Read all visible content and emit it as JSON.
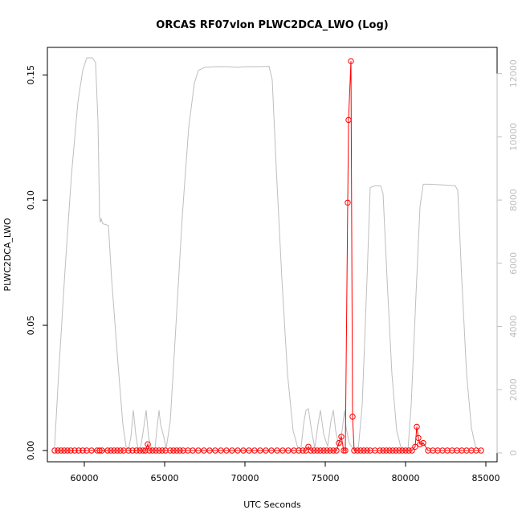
{
  "chart_data": {
    "type": "line",
    "title": "ORCAS RF07vlon PLWC2DCA_LWO (Log)",
    "xlabel": "UTC Seconds",
    "ylabel": "PLWC2DCA_LWO",
    "xlim": [
      57700,
      85700
    ],
    "ylim": [
      -0.0045,
      0.161
    ],
    "y2lim": [
      -280,
      12830
    ],
    "x_ticks": [
      60000,
      65000,
      70000,
      75000,
      80000,
      85000
    ],
    "y_ticks": [
      0.0,
      0.05,
      0.1,
      0.15
    ],
    "y2_ticks": [
      0,
      2000,
      4000,
      6000,
      8000,
      10000,
      12000
    ],
    "grid": false,
    "legend": "none",
    "colors": {
      "primary": "#ff0000",
      "secondary": "#bebebe",
      "axis": "#000000"
    },
    "series": [
      {
        "axis": "left",
        "color": "#ff0000",
        "marker": "open-circle",
        "points": [
          [
            58150,
            0
          ],
          [
            58350,
            0
          ],
          [
            58550,
            0
          ],
          [
            58750,
            0
          ],
          [
            58950,
            0
          ],
          [
            59150,
            0
          ],
          [
            59400,
            0
          ],
          [
            59650,
            0
          ],
          [
            59900,
            0
          ],
          [
            60150,
            0
          ],
          [
            60450,
            0
          ],
          [
            60800,
            0
          ],
          [
            60950,
            0
          ],
          [
            61100,
            0
          ],
          [
            61450,
            0
          ],
          [
            61650,
            0
          ],
          [
            61850,
            0
          ],
          [
            62050,
            0
          ],
          [
            62250,
            0
          ],
          [
            62450,
            0
          ],
          [
            62750,
            0
          ],
          [
            63000,
            0
          ],
          [
            63250,
            0
          ],
          [
            63450,
            0
          ],
          [
            63650,
            0
          ],
          [
            63800,
            0
          ],
          [
            63950,
            0.0025
          ],
          [
            64050,
            0
          ],
          [
            64250,
            0
          ],
          [
            64450,
            0
          ],
          [
            64650,
            0
          ],
          [
            64850,
            0
          ],
          [
            65050,
            0
          ],
          [
            65350,
            0
          ],
          [
            65550,
            0
          ],
          [
            65750,
            0
          ],
          [
            65950,
            0
          ],
          [
            66150,
            0
          ],
          [
            66450,
            0
          ],
          [
            66750,
            0
          ],
          [
            67100,
            0
          ],
          [
            67450,
            0
          ],
          [
            67800,
            0
          ],
          [
            68150,
            0
          ],
          [
            68500,
            0
          ],
          [
            68850,
            0
          ],
          [
            69200,
            0
          ],
          [
            69550,
            0
          ],
          [
            69900,
            0
          ],
          [
            70250,
            0
          ],
          [
            70600,
            0
          ],
          [
            70950,
            0
          ],
          [
            71300,
            0
          ],
          [
            71650,
            0
          ],
          [
            72000,
            0
          ],
          [
            72350,
            0
          ],
          [
            72700,
            0
          ],
          [
            73050,
            0
          ],
          [
            73350,
            0
          ],
          [
            73600,
            0
          ],
          [
            73800,
            0
          ],
          [
            73950,
            0.0015
          ],
          [
            74100,
            0
          ],
          [
            74300,
            0
          ],
          [
            74500,
            0
          ],
          [
            74700,
            0
          ],
          [
            74900,
            0
          ],
          [
            75100,
            0
          ],
          [
            75300,
            0
          ],
          [
            75500,
            0
          ],
          [
            75700,
            0
          ],
          [
            75850,
            0.003
          ],
          [
            76000,
            0.0055
          ],
          [
            76150,
            0
          ],
          [
            76250,
            0
          ],
          [
            76400,
            0.099
          ],
          [
            76450,
            0.132
          ],
          [
            76600,
            0.1555
          ],
          [
            76700,
            0.0135
          ],
          [
            76800,
            0
          ],
          [
            77000,
            0
          ],
          [
            77200,
            0
          ],
          [
            77400,
            0
          ],
          [
            77600,
            0
          ],
          [
            77800,
            0
          ],
          [
            78100,
            0
          ],
          [
            78400,
            0
          ],
          [
            78600,
            0
          ],
          [
            78800,
            0
          ],
          [
            79000,
            0
          ],
          [
            79200,
            0
          ],
          [
            79400,
            0
          ],
          [
            79600,
            0
          ],
          [
            79800,
            0
          ],
          [
            80000,
            0
          ],
          [
            80200,
            0
          ],
          [
            80400,
            0
          ],
          [
            80600,
            0.0015
          ],
          [
            80700,
            0.0095
          ],
          [
            80800,
            0.005
          ],
          [
            80900,
            0.0025
          ],
          [
            81100,
            0.003
          ],
          [
            81400,
            0
          ],
          [
            81700,
            0
          ],
          [
            82000,
            0
          ],
          [
            82300,
            0
          ],
          [
            82600,
            0
          ],
          [
            82900,
            0
          ],
          [
            83200,
            0
          ],
          [
            83500,
            0
          ],
          [
            83800,
            0
          ],
          [
            84100,
            0
          ],
          [
            84400,
            0
          ],
          [
            84700,
            0
          ]
        ]
      },
      {
        "axis": "right",
        "color": "#bebebe",
        "marker": "none",
        "points": [
          [
            58150,
            200
          ],
          [
            58400,
            2500
          ],
          [
            58800,
            5800
          ],
          [
            59200,
            8800
          ],
          [
            59600,
            11100
          ],
          [
            59900,
            12100
          ],
          [
            60150,
            12500
          ],
          [
            60500,
            12500
          ],
          [
            60700,
            12350
          ],
          [
            60850,
            10500
          ],
          [
            60950,
            7500
          ],
          [
            61000,
            7300
          ],
          [
            61050,
            7400
          ],
          [
            61150,
            7250
          ],
          [
            61500,
            7200
          ],
          [
            61700,
            5500
          ],
          [
            62100,
            2800
          ],
          [
            62400,
            900
          ],
          [
            62600,
            200
          ],
          [
            62750,
            100
          ],
          [
            62900,
            500
          ],
          [
            63050,
            1350
          ],
          [
            63200,
            600
          ],
          [
            63350,
            100
          ],
          [
            63500,
            150
          ],
          [
            63700,
            800
          ],
          [
            63850,
            1350
          ],
          [
            64000,
            500
          ],
          [
            64200,
            100
          ],
          [
            64400,
            150
          ],
          [
            64550,
            900
          ],
          [
            64650,
            1350
          ],
          [
            64750,
            900
          ],
          [
            64950,
            500
          ],
          [
            65100,
            150
          ],
          [
            65350,
            1000
          ],
          [
            65700,
            4000
          ],
          [
            66100,
            7500
          ],
          [
            66500,
            10300
          ],
          [
            66850,
            11700
          ],
          [
            67100,
            12100
          ],
          [
            67500,
            12200
          ],
          [
            68200,
            12220
          ],
          [
            69000,
            12220
          ],
          [
            69500,
            12200
          ],
          [
            70000,
            12220
          ],
          [
            70800,
            12220
          ],
          [
            71500,
            12230
          ],
          [
            71700,
            11800
          ],
          [
            71950,
            9000
          ],
          [
            72300,
            5500
          ],
          [
            72650,
            2500
          ],
          [
            73000,
            700
          ],
          [
            73300,
            150
          ],
          [
            73500,
            200
          ],
          [
            73650,
            900
          ],
          [
            73800,
            1350
          ],
          [
            73950,
            1400
          ],
          [
            74150,
            700
          ],
          [
            74350,
            150
          ],
          [
            74550,
            900
          ],
          [
            74700,
            1350
          ],
          [
            74900,
            600
          ],
          [
            75150,
            200
          ],
          [
            75350,
            1000
          ],
          [
            75500,
            1350
          ],
          [
            75650,
            700
          ],
          [
            75850,
            200
          ],
          [
            76050,
            700
          ],
          [
            76200,
            1350
          ],
          [
            76300,
            800
          ],
          [
            76500,
            300
          ],
          [
            76800,
            100
          ],
          [
            77050,
            100
          ],
          [
            77300,
            1500
          ],
          [
            77600,
            5500
          ],
          [
            77800,
            8400
          ],
          [
            78100,
            8450
          ],
          [
            78450,
            8450
          ],
          [
            78600,
            8200
          ],
          [
            78850,
            5500
          ],
          [
            79150,
            2500
          ],
          [
            79450,
            700
          ],
          [
            79700,
            200
          ],
          [
            79950,
            50
          ],
          [
            80150,
            100
          ],
          [
            80350,
            1500
          ],
          [
            80650,
            5000
          ],
          [
            80900,
            7800
          ],
          [
            81100,
            8500
          ],
          [
            81500,
            8500
          ],
          [
            82300,
            8480
          ],
          [
            83100,
            8450
          ],
          [
            83250,
            8300
          ],
          [
            83500,
            5500
          ],
          [
            83800,
            2500
          ],
          [
            84100,
            800
          ],
          [
            84350,
            200
          ],
          [
            84650,
            50
          ]
        ]
      }
    ]
  }
}
